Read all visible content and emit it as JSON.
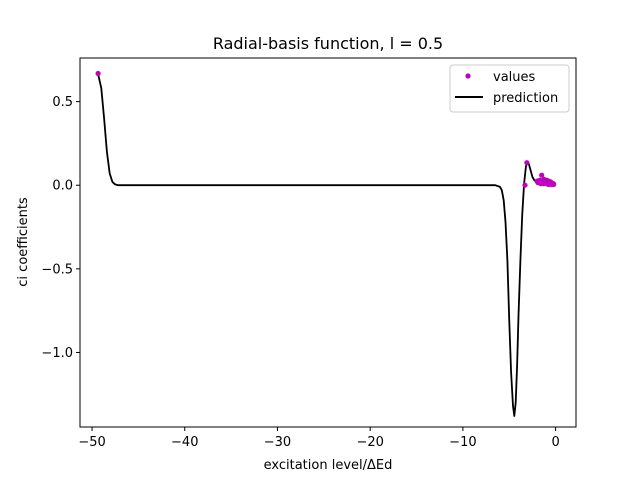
{
  "chart_data": {
    "type": "line",
    "title": "Radial-basis function, l = 0.5",
    "xlabel": "excitation level/ΔEd",
    "ylabel": "ci coefficients",
    "xlim": [
      -51.3,
      2.2
    ],
    "ylim": [
      -1.4457,
      0.7608
    ],
    "x_ticks": [
      -50,
      -40,
      -30,
      -20,
      -10,
      0
    ],
    "x_tick_labels": [
      "−50",
      "−40",
      "−30",
      "−20",
      "−10",
      "0"
    ],
    "y_ticks": [
      0.5,
      0.0,
      -0.5,
      -1.0
    ],
    "y_tick_labels": [
      "0.5",
      "0.0",
      "−0.5",
      "−1.0"
    ],
    "grid": false,
    "legend": {
      "position": "top-right",
      "entries": [
        "values",
        "prediction"
      ]
    },
    "series": [
      {
        "name": "values",
        "kind": "markers",
        "color": "#bf00bf",
        "x": [
          -49.35,
          -3.3,
          -3.1,
          -2.0,
          -1.9,
          -1.7,
          -1.6,
          -1.5,
          -1.45,
          -1.3,
          -1.25,
          -1.1,
          -1.0,
          -0.95,
          -0.9,
          -0.8,
          -0.75,
          -0.7,
          -0.6,
          -0.55,
          -0.5,
          -0.45,
          -0.4,
          -0.3,
          -0.25,
          -0.2
        ],
        "y": [
          0.668,
          0.0,
          0.135,
          0.025,
          0.015,
          0.03,
          0.01,
          0.06,
          0.02,
          0.01,
          0.035,
          0.025,
          0.01,
          0.03,
          0.02,
          0.005,
          0.025,
          0.015,
          0.01,
          0.02,
          0.005,
          0.015,
          0.01,
          0.005,
          0.01,
          0.005
        ]
      },
      {
        "name": "prediction",
        "kind": "line",
        "color": "#000000",
        "x": [
          -49.35,
          -49.0,
          -48.7,
          -48.4,
          -48.1,
          -47.8,
          -47.5,
          -47.2,
          -46.8,
          -40.0,
          -30.0,
          -20.0,
          -10.0,
          -6.5,
          -6.0,
          -5.8,
          -5.6,
          -5.4,
          -5.2,
          -5.0,
          -4.8,
          -4.6,
          -4.45,
          -4.3,
          -4.15,
          -4.0,
          -3.8,
          -3.6,
          -3.4,
          -3.2,
          -3.05,
          -2.9,
          -2.7,
          -2.5,
          -2.3,
          -2.1,
          -1.9,
          -1.7,
          -1.5,
          -1.2,
          -0.9,
          -0.6,
          -0.3,
          -0.1
        ],
        "y": [
          0.665,
          0.58,
          0.4,
          0.2,
          0.07,
          0.02,
          0.005,
          0.0,
          0.0,
          0.0,
          0.0,
          0.0,
          0.0,
          0.0,
          -0.01,
          -0.03,
          -0.09,
          -0.22,
          -0.45,
          -0.8,
          -1.12,
          -1.32,
          -1.38,
          -1.3,
          -1.08,
          -0.78,
          -0.45,
          -0.18,
          0.01,
          0.11,
          0.14,
          0.13,
          0.09,
          0.05,
          0.03,
          0.02,
          0.018,
          0.015,
          0.012,
          0.01,
          0.008,
          0.006,
          0.004,
          0.003
        ]
      }
    ]
  }
}
